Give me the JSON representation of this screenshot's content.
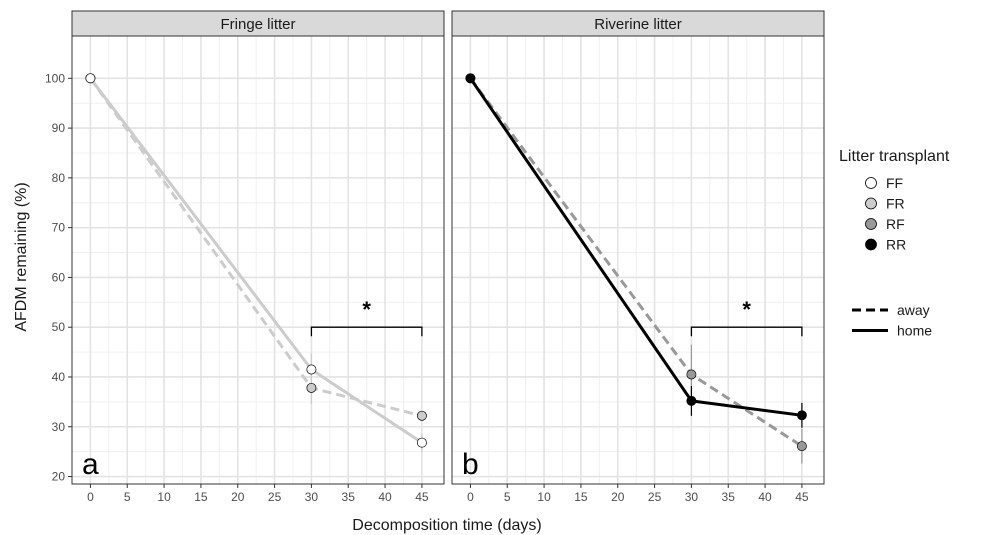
{
  "chart_data": {
    "type": "line",
    "xlabel": "Decomposition time (days)",
    "ylabel": "AFDM remaining (%)",
    "xlim": [
      -2.5,
      48
    ],
    "ylim": [
      18.5,
      108.5
    ],
    "xticks": [
      0,
      5,
      10,
      15,
      20,
      25,
      30,
      35,
      40,
      45
    ],
    "yticks": [
      20,
      30,
      40,
      50,
      60,
      70,
      80,
      90,
      100
    ],
    "grid": true,
    "legend_position": "right",
    "legend": {
      "title": "Litter transplant",
      "color_entries": [
        {
          "label": "FF",
          "fill": "#ffffff"
        },
        {
          "label": "FR",
          "fill": "#cccccc"
        },
        {
          "label": "RF",
          "fill": "#999999"
        },
        {
          "label": "RR",
          "fill": "#000000"
        }
      ],
      "linetype_entries": [
        {
          "label": "away",
          "dash": true
        },
        {
          "label": "home",
          "dash": false
        }
      ]
    },
    "panels": [
      {
        "strip": "Fringe litter",
        "tag": "a",
        "bracket": {
          "x1": 30,
          "x2": 45,
          "y": 50,
          "label": "*"
        },
        "series": [
          {
            "name": "FR",
            "linetype": "away",
            "color": "#cccccc",
            "point_fill": "#cccccc",
            "points": [
              {
                "x": 0,
                "y": 100
              },
              {
                "x": 30,
                "y": 37.8,
                "err": 3.2
              },
              {
                "x": 45,
                "y": 32.2
              }
            ]
          },
          {
            "name": "FF",
            "linetype": "home",
            "color": "#cccccc",
            "point_fill": "#ffffff",
            "points": [
              {
                "x": 0,
                "y": 100
              },
              {
                "x": 30,
                "y": 41.5,
                "err": 3.2
              },
              {
                "x": 45,
                "y": 26.8,
                "err": 1.8
              }
            ]
          }
        ]
      },
      {
        "strip": "Riverine litter",
        "tag": "b",
        "bracket": {
          "x1": 30,
          "x2": 45,
          "y": 50,
          "label": "*"
        },
        "series": [
          {
            "name": "RF",
            "linetype": "away",
            "color": "#999999",
            "point_fill": "#999999",
            "points": [
              {
                "x": 0,
                "y": 100
              },
              {
                "x": 30,
                "y": 40.5,
                "err": 6
              },
              {
                "x": 45,
                "y": 26.1,
                "err": 3.5
              }
            ]
          },
          {
            "name": "RR",
            "linetype": "home",
            "color": "#000000",
            "point_fill": "#000000",
            "points": [
              {
                "x": 0,
                "y": 100
              },
              {
                "x": 30,
                "y": 35.2,
                "err": 3
              },
              {
                "x": 45,
                "y": 32.3,
                "err": 2.5
              }
            ]
          }
        ]
      }
    ]
  }
}
